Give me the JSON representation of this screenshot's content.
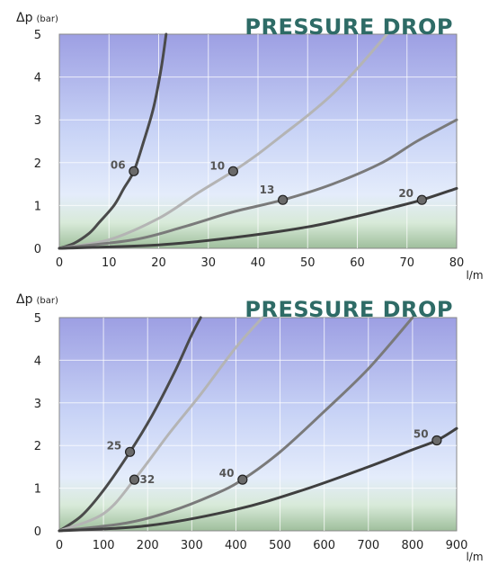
{
  "chart_data": [
    {
      "type": "line",
      "title": "PRESSURE DROP",
      "ylabel_main": "Δp",
      "ylabel_unit": "(bar)",
      "xlabel": "l/m",
      "xlim": [
        0,
        80
      ],
      "ylim": [
        0,
        5
      ],
      "xticks": [
        0,
        10,
        20,
        30,
        40,
        50,
        60,
        70,
        80
      ],
      "yticks": [
        0,
        1,
        2,
        3,
        4,
        5
      ],
      "grid": true,
      "series": [
        {
          "name": "06",
          "color": "#4a4a4a",
          "marker": [
            15,
            1.8
          ],
          "points": [
            [
              0,
              0
            ],
            [
              3,
              0.12
            ],
            [
              6,
              0.35
            ],
            [
              8,
              0.6
            ],
            [
              11,
              1.0
            ],
            [
              13,
              1.4
            ],
            [
              15,
              1.8
            ],
            [
              17,
              2.5
            ],
            [
              19,
              3.3
            ],
            [
              20.5,
              4.2
            ],
            [
              21.5,
              5
            ]
          ]
        },
        {
          "name": "10",
          "color": "#b4b4b4",
          "marker": [
            35,
            1.8
          ],
          "points": [
            [
              0,
              0
            ],
            [
              10,
              0.2
            ],
            [
              20,
              0.7
            ],
            [
              28,
              1.3
            ],
            [
              35,
              1.8
            ],
            [
              40,
              2.2
            ],
            [
              45,
              2.65
            ],
            [
              50,
              3.1
            ],
            [
              55,
              3.6
            ],
            [
              60,
              4.2
            ],
            [
              66,
              5
            ]
          ]
        },
        {
          "name": "13",
          "color": "#7a7a7a",
          "marker": [
            45,
            1.13
          ],
          "points": [
            [
              0,
              0
            ],
            [
              15,
              0.2
            ],
            [
              25,
              0.5
            ],
            [
              35,
              0.85
            ],
            [
              45,
              1.13
            ],
            [
              55,
              1.5
            ],
            [
              65,
              2.0
            ],
            [
              72,
              2.5
            ],
            [
              80,
              3.0
            ]
          ]
        },
        {
          "name": "20",
          "color": "#3f3f3f",
          "marker": [
            73,
            1.13
          ],
          "points": [
            [
              0,
              0
            ],
            [
              20,
              0.08
            ],
            [
              35,
              0.25
            ],
            [
              50,
              0.5
            ],
            [
              60,
              0.75
            ],
            [
              67,
              0.95
            ],
            [
              73,
              1.13
            ],
            [
              80,
              1.4
            ]
          ]
        }
      ]
    },
    {
      "type": "line",
      "title": "PRESSURE DROP",
      "ylabel_main": "Δp",
      "ylabel_unit": "(bar)",
      "xlabel": "l/m",
      "xlim": [
        0,
        900
      ],
      "ylim": [
        0,
        5
      ],
      "xticks": [
        0,
        100,
        200,
        300,
        400,
        500,
        600,
        700,
        800,
        900
      ],
      "yticks": [
        0,
        1,
        2,
        3,
        4,
        5
      ],
      "grid": true,
      "series": [
        {
          "name": "25",
          "color": "#4a4a4a",
          "marker": [
            160,
            1.85
          ],
          "points": [
            [
              0,
              0
            ],
            [
              50,
              0.35
            ],
            [
              100,
              0.95
            ],
            [
              160,
              1.85
            ],
            [
              210,
              2.7
            ],
            [
              260,
              3.7
            ],
            [
              300,
              4.6
            ],
            [
              320,
              5
            ]
          ]
        },
        {
          "name": "32",
          "color": "#b4b4b4",
          "marker": [
            170,
            1.2
          ],
          "points": [
            [
              0,
              0
            ],
            [
              100,
              0.4
            ],
            [
              170,
              1.2
            ],
            [
              250,
              2.3
            ],
            [
              320,
              3.2
            ],
            [
              400,
              4.3
            ],
            [
              460,
              5
            ]
          ]
        },
        {
          "name": "40",
          "color": "#7a7a7a",
          "marker": [
            415,
            1.2
          ],
          "points": [
            [
              0,
              0
            ],
            [
              150,
              0.18
            ],
            [
              250,
              0.45
            ],
            [
              350,
              0.85
            ],
            [
              415,
              1.2
            ],
            [
              500,
              1.85
            ],
            [
              600,
              2.8
            ],
            [
              700,
              3.8
            ],
            [
              800,
              5
            ]
          ]
        },
        {
          "name": "50",
          "color": "#3f3f3f",
          "marker": [
            855,
            2.12
          ],
          "points": [
            [
              0,
              0
            ],
            [
              200,
              0.12
            ],
            [
              400,
              0.5
            ],
            [
              550,
              0.95
            ],
            [
              700,
              1.5
            ],
            [
              800,
              1.9
            ],
            [
              855,
              2.12
            ],
            [
              900,
              2.4
            ]
          ]
        }
      ]
    }
  ]
}
